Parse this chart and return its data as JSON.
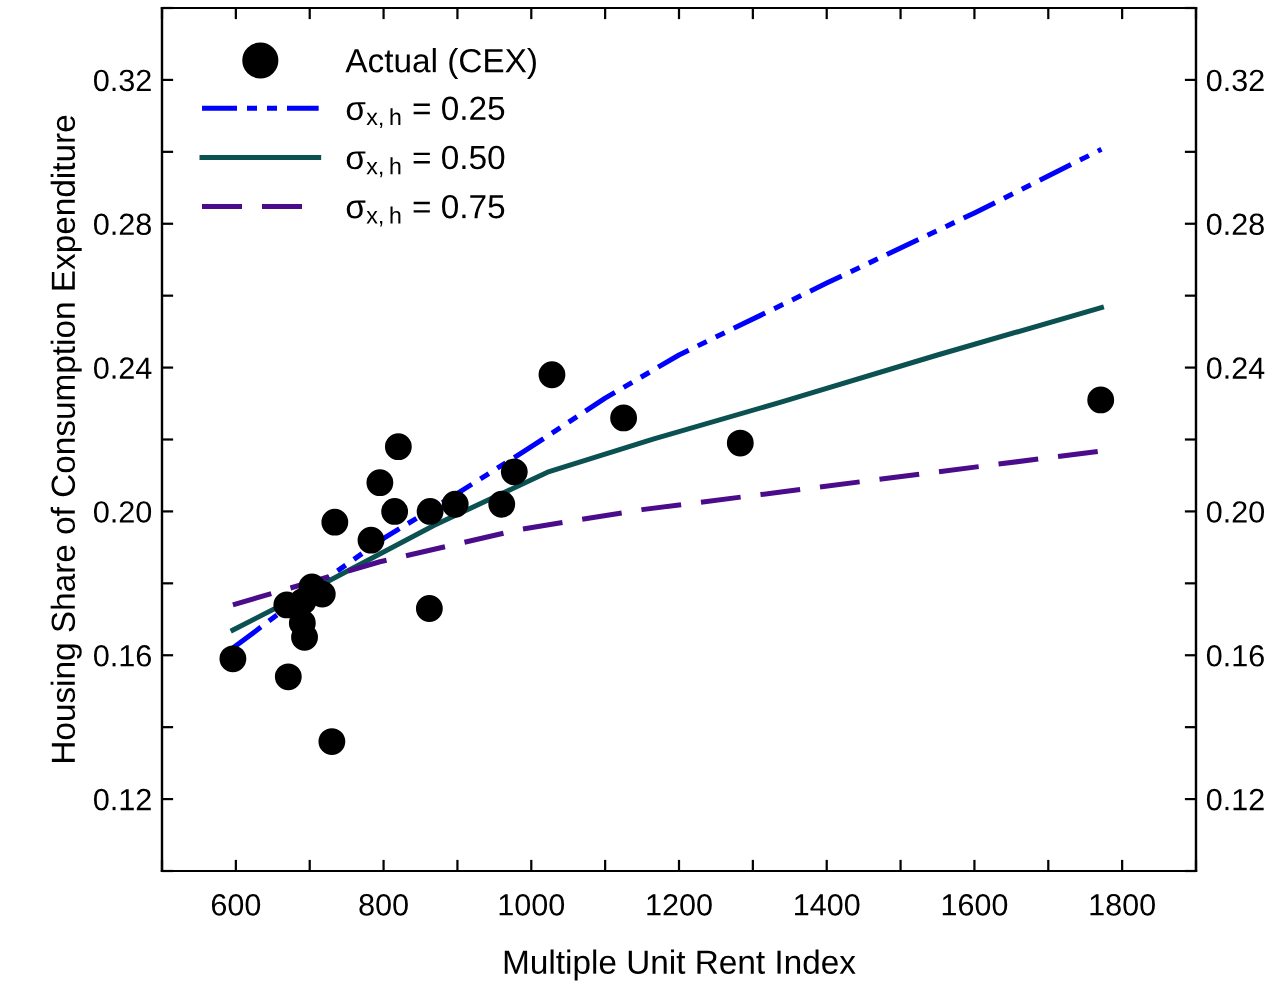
{
  "chart_data": {
    "type": "scatter",
    "xlabel": "Multiple Unit Rent Index",
    "ylabel": "Housing Share of Consumption Expenditure",
    "xlim": [
      500,
      1900
    ],
    "ylim": [
      0.1,
      0.34
    ],
    "y2lim": [
      0.1,
      0.34
    ],
    "xticks": [
      {
        "value": 500,
        "label": null
      },
      600,
      {
        "value": 700,
        "label": null
      },
      800,
      {
        "value": 900,
        "label": null
      },
      1000,
      {
        "value": 1100,
        "label": null
      },
      1200,
      {
        "value": 1300,
        "label": null
      },
      1400,
      {
        "value": 1500,
        "label": null
      },
      1600,
      {
        "value": 1700,
        "label": null
      },
      1800,
      {
        "value": 1900,
        "label": null
      }
    ],
    "yticks": [
      {
        "value": 0.1,
        "label": null
      },
      0.12,
      {
        "value": 0.14,
        "label": null
      },
      0.16,
      {
        "value": 0.18,
        "label": null
      },
      {
        "value": 0.2,
        "label": "0.20"
      },
      {
        "value": 0.22,
        "label": null
      },
      0.24,
      {
        "value": 0.26,
        "label": null
      },
      0.28,
      {
        "value": 0.3,
        "label": null
      },
      0.32,
      {
        "value": 0.34,
        "label": null
      }
    ],
    "y2ticks": [
      {
        "value": 0.1,
        "label": null
      },
      0.12,
      {
        "value": 0.14,
        "label": null
      },
      0.16,
      {
        "value": 0.18,
        "label": null
      },
      {
        "value": 0.2,
        "label": "0.20"
      },
      {
        "value": 0.22,
        "label": null
      },
      0.24,
      {
        "value": 0.26,
        "label": null
      },
      0.28,
      {
        "value": 0.3,
        "label": null
      },
      0.32,
      {
        "value": 0.34,
        "label": null
      }
    ],
    "grid": false,
    "legend": "top left",
    "series": [
      {
        "name": "Actual (CEX)",
        "marker": "circle",
        "color": "#000000",
        "x": [
          596,
          671,
          669,
          691,
          703,
          717,
          690,
          693,
          730,
          734,
          783,
          795,
          820,
          815,
          863,
          897,
          862,
          960,
          977,
          1028,
          1125,
          1283,
          1771
        ],
        "values": [
          0.159,
          0.154,
          0.174,
          0.175,
          0.179,
          0.177,
          0.169,
          0.165,
          0.136,
          0.197,
          0.192,
          0.208,
          0.218,
          0.2,
          0.2,
          0.202,
          0.173,
          0.202,
          0.211,
          0.238,
          0.226,
          0.219,
          0.231
        ]
      },
      {
        "name": "σ$_{x,h}$ = 0.25",
        "type": "line",
        "line_style": "dashdotdot",
        "marker": "none",
        "color": "#0000ff",
        "x": [
          596,
          700,
          800,
          900,
          1000,
          1100,
          1200,
          1400,
          1600,
          1772
        ],
        "values": [
          0.162,
          0.178,
          0.1925,
          0.205,
          0.218,
          0.2315,
          0.2435,
          0.2635,
          0.283,
          0.3007
        ]
      },
      {
        "name": "σ$_{x,h}$ = 0.50",
        "type": "line",
        "line_style": "solid",
        "marker": "none",
        "color": "#0b5152",
        "x": [
          596,
          714,
          868,
          1022,
          1166,
          1338,
          1550,
          1772
        ],
        "values": [
          0.167,
          0.1794,
          0.1961,
          0.2109,
          0.2202,
          0.2304,
          0.2435,
          0.2567
        ]
      },
      {
        "name": "σ$_{x,h}$ = 0.75",
        "type": "line",
        "line_style": "dashed",
        "marker": "none",
        "color": "#4b0c8c",
        "x": [
          596,
          795,
          985,
          1150,
          1338,
          1550,
          1772
        ],
        "values": [
          0.174,
          0.186,
          0.195,
          0.2005,
          0.2054,
          0.211,
          0.2168
        ]
      }
    ]
  }
}
